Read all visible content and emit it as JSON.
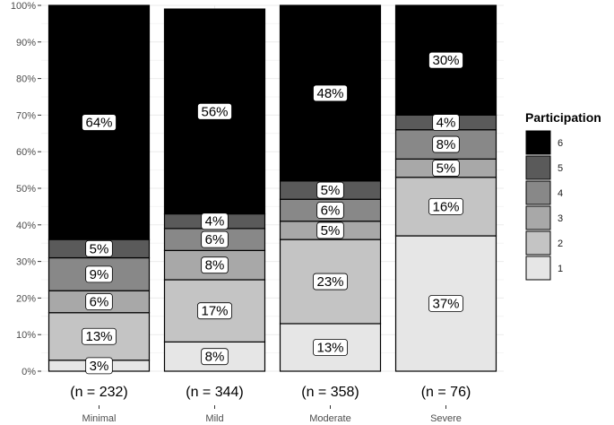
{
  "chart_data": {
    "type": "bar",
    "stacked": true,
    "percent_scale": true,
    "categories": [
      "Minimal",
      "Mild",
      "Moderate",
      "Severe"
    ],
    "n_labels": [
      "(n = 232)",
      "(n = 344)",
      "(n = 358)",
      "(n = 76)"
    ],
    "yticks": [
      "0%",
      "10%",
      "20%",
      "30%",
      "40%",
      "50%",
      "60%",
      "70%",
      "80%",
      "90%",
      "100%"
    ],
    "ylim": [
      0,
      100
    ],
    "grid": true,
    "legend": {
      "title": "Participation",
      "position": "right"
    },
    "series": [
      {
        "name": "1",
        "color": "#e6e6e6",
        "values": [
          3,
          8,
          13,
          37
        ],
        "labels": [
          "3%",
          "8%",
          "13%",
          "37%"
        ]
      },
      {
        "name": "2",
        "color": "#c4c4c4",
        "values": [
          13,
          17,
          23,
          16
        ],
        "labels": [
          "13%",
          "17%",
          "23%",
          "16%"
        ]
      },
      {
        "name": "3",
        "color": "#a8a8a8",
        "values": [
          6,
          8,
          5,
          5
        ],
        "labels": [
          "6%",
          "8%",
          "5%",
          "5%"
        ]
      },
      {
        "name": "4",
        "color": "#888888",
        "values": [
          9,
          6,
          6,
          8
        ],
        "labels": [
          "9%",
          "6%",
          "6%",
          "8%"
        ]
      },
      {
        "name": "5",
        "color": "#5a5a5a",
        "values": [
          5,
          4,
          5,
          4
        ],
        "labels": [
          "5%",
          "4%",
          "5%",
          "4%"
        ]
      },
      {
        "name": "6",
        "color": "#000000",
        "values": [
          64,
          56,
          48,
          30
        ],
        "labels": [
          "64%",
          "56%",
          "48%",
          "30%"
        ]
      }
    ]
  }
}
